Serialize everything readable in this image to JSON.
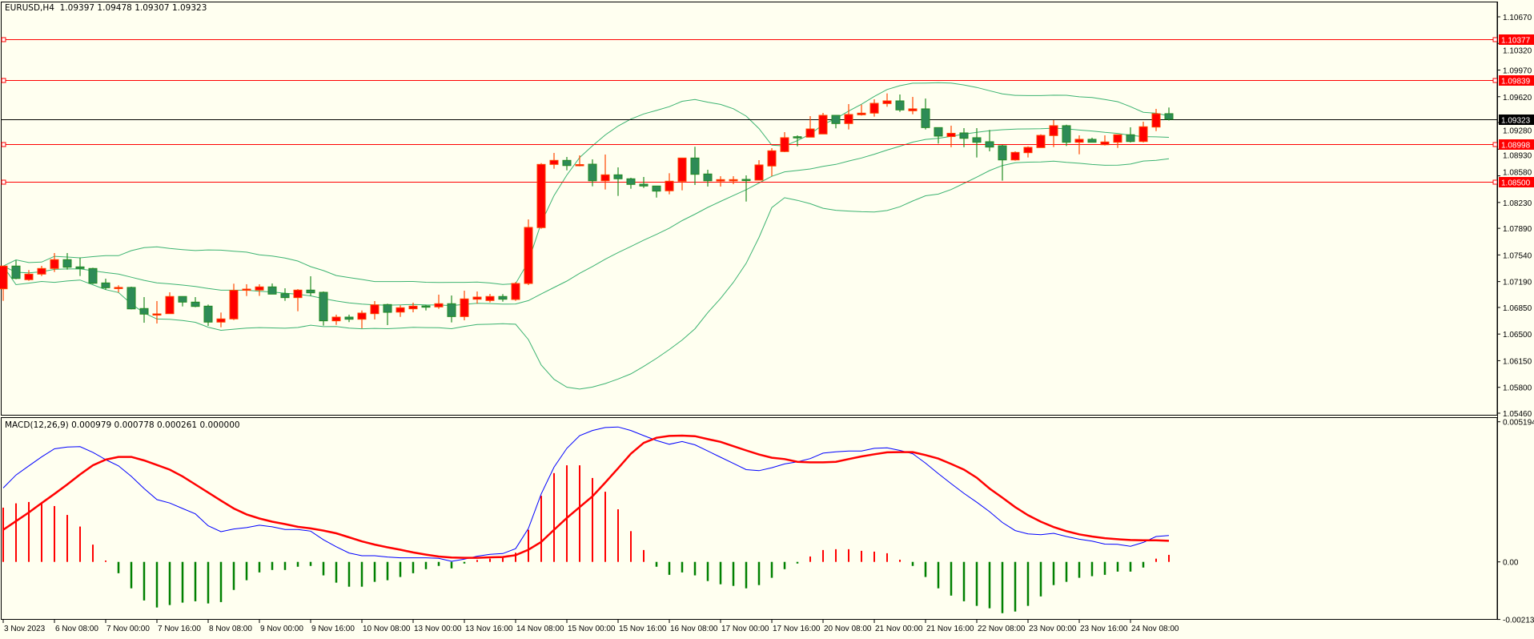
{
  "header": {
    "symbol": "EURUSD,H4",
    "open": "1.09397",
    "high": "1.09478",
    "low": "1.09307",
    "close": "1.09323"
  },
  "macd_header": {
    "name": "MACD(12,26,9)",
    "v1": "0.000979",
    "v2": "0.000778",
    "v3": "0.000261",
    "v4": "0.000000"
  },
  "colors": {
    "background": "#fffff0",
    "bull_fill": "#ff0000",
    "bull_border": "#ff4500",
    "bear_fill": "#2e8b57",
    "bear_border": "#228b22",
    "bands": "#3cb371",
    "hline": "#ff0000",
    "bid_line": "#000000",
    "macd_line": "#0000ff",
    "signal_line": "#ff0000",
    "hist_pos": "#ff0000",
    "hist_neg": "#008000"
  },
  "chart_data": [
    {
      "type": "candlestick",
      "title": "EURUSD,H4",
      "indicator": "Bollinger Bands",
      "ylim": [
        1.0546,
        1.1067
      ],
      "yticks": [
        "1.10670",
        "1.10320",
        "1.09970",
        "1.09620",
        "1.09280",
        "1.08930",
        "1.08580",
        "1.08230",
        "1.07890",
        "1.07540",
        "1.07190",
        "1.06850",
        "1.06500",
        "1.06150",
        "1.05800",
        "1.05460"
      ],
      "hlines": [
        "1.10377",
        "1.09839",
        "1.08998",
        "1.08500"
      ],
      "bid": "1.09323",
      "xticks": [
        "3 Nov 2023",
        "6 Nov 08:00",
        "7 Nov 00:00",
        "7 Nov 16:00",
        "8 Nov 08:00",
        "9 Nov 00:00",
        "9 Nov 16:00",
        "10 Nov 08:00",
        "13 Nov 00:00",
        "13 Nov 16:00",
        "14 Nov 08:00",
        "15 Nov 00:00",
        "15 Nov 16:00",
        "16 Nov 08:00",
        "17 Nov 00:00",
        "17 Nov 16:00",
        "20 Nov 08:00",
        "21 Nov 00:00",
        "21 Nov 16:00",
        "22 Nov 08:00",
        "23 Nov 00:00",
        "23 Nov 16:00",
        "24 Nov 08:00"
      ],
      "ohlc": [
        [
          1.07095,
          1.07397,
          1.06937,
          1.07394
        ],
        [
          1.07394,
          1.0747,
          1.07221,
          1.07231
        ],
        [
          1.07215,
          1.07341,
          1.072,
          1.07288
        ],
        [
          1.07288,
          1.07397,
          1.07263,
          1.07362
        ],
        [
          1.07362,
          1.07565,
          1.07316,
          1.07478
        ],
        [
          1.07478,
          1.07565,
          1.07347,
          1.07379
        ],
        [
          1.07383,
          1.07505,
          1.07263,
          1.07362
        ],
        [
          1.07362,
          1.07372,
          1.07158,
          1.07168
        ],
        [
          1.07172,
          1.07228,
          1.07084,
          1.07109
        ],
        [
          1.0711,
          1.07141,
          1.07049,
          1.07113
        ],
        [
          1.07113,
          1.07123,
          1.06825,
          1.06831
        ],
        [
          1.06836,
          1.06986,
          1.06649,
          1.06762
        ],
        [
          1.06763,
          1.06934,
          1.06639,
          1.06765
        ],
        [
          1.06768,
          1.07049,
          1.06768,
          1.06994
        ],
        [
          1.06994,
          1.06997,
          1.06863,
          1.0692
        ],
        [
          1.0692,
          1.06986,
          1.06853,
          1.06863
        ],
        [
          1.06867,
          1.06888,
          1.06607,
          1.06657
        ],
        [
          1.06657,
          1.06783,
          1.06589,
          1.06699
        ],
        [
          1.06699,
          1.07162,
          1.06684,
          1.07074
        ],
        [
          1.07081,
          1.07155,
          1.07,
          1.07091
        ],
        [
          1.07078,
          1.07155,
          1.07002,
          1.0712
        ],
        [
          1.0712,
          1.07165,
          1.07023,
          1.07025
        ],
        [
          1.07031,
          1.07102,
          1.06937,
          1.06979
        ],
        [
          1.06979,
          1.07091,
          1.068,
          1.07078
        ],
        [
          1.07078,
          1.0726,
          1.07004,
          1.07042
        ],
        [
          1.07049,
          1.0706,
          1.06611,
          1.06674
        ],
        [
          1.06674,
          1.06755,
          1.06621,
          1.06723
        ],
        [
          1.06723,
          1.06755,
          1.06657,
          1.06695
        ],
        [
          1.06695,
          1.0681,
          1.06576,
          1.06776
        ],
        [
          1.06768,
          1.06934,
          1.06692,
          1.06884
        ],
        [
          1.06888,
          1.06899,
          1.06618,
          1.06786
        ],
        [
          1.06789,
          1.06878,
          1.06726,
          1.06846
        ],
        [
          1.06832,
          1.06913,
          1.06786,
          1.06867
        ],
        [
          1.0687,
          1.06884,
          1.0681,
          1.06853
        ],
        [
          1.06857,
          1.07018,
          1.06832,
          1.06899
        ],
        [
          1.06899,
          1.07007,
          1.06653,
          1.0673
        ],
        [
          1.0673,
          1.0707,
          1.06681,
          1.06962
        ],
        [
          1.06958,
          1.0706,
          1.06899,
          1.06986
        ],
        [
          1.06941,
          1.07028,
          1.06916,
          1.06994
        ],
        [
          1.06994,
          1.07025,
          1.06926,
          1.06958
        ],
        [
          1.06955,
          1.07183,
          1.06937,
          1.07165
        ],
        [
          1.07165,
          1.08007,
          1.07144,
          1.07902
        ],
        [
          1.07899,
          1.08747,
          1.07884,
          1.0873
        ],
        [
          1.0873,
          1.08881,
          1.08673,
          1.08783
        ],
        [
          1.08783,
          1.08828,
          1.08652,
          1.08715
        ],
        [
          1.08723,
          1.08849,
          1.08705,
          1.08728
        ],
        [
          1.08733,
          1.08797,
          1.08442,
          1.08515
        ],
        [
          1.08515,
          1.0886,
          1.084,
          1.08593
        ],
        [
          1.08593,
          1.08691,
          1.08316,
          1.08541
        ],
        [
          1.08541,
          1.08555,
          1.0841,
          1.08467
        ],
        [
          1.0847,
          1.08565,
          1.08421,
          1.08446
        ],
        [
          1.08446,
          1.08449,
          1.08294,
          1.08379
        ],
        [
          1.08383,
          1.08614,
          1.08337,
          1.08509
        ],
        [
          1.08509,
          1.08818,
          1.08389,
          1.08814
        ],
        [
          1.08814,
          1.08962,
          1.0846,
          1.086
        ],
        [
          1.08604,
          1.0866,
          1.08439,
          1.08515
        ],
        [
          1.08512,
          1.08575,
          1.08439,
          1.0853
        ],
        [
          1.08529,
          1.08575,
          1.0847,
          1.0853
        ],
        [
          1.08533,
          1.08586,
          1.08242,
          1.08531
        ],
        [
          1.08523,
          1.08786,
          1.08523,
          1.08723
        ],
        [
          1.08709,
          1.08944,
          1.08575,
          1.08909
        ],
        [
          1.08899,
          1.09154,
          1.08891,
          1.09081
        ],
        [
          1.09094,
          1.09112,
          1.08968,
          1.09088
        ],
        [
          1.09088,
          1.09365,
          1.09088,
          1.09196
        ],
        [
          1.0913,
          1.09407,
          1.0913,
          1.09375
        ],
        [
          1.09375,
          1.09375,
          1.09204,
          1.09267
        ],
        [
          1.09267,
          1.09523,
          1.09189,
          1.09386
        ],
        [
          1.09383,
          1.09515,
          1.09372,
          1.09404
        ],
        [
          1.09404,
          1.09586,
          1.09358,
          1.09533
        ],
        [
          1.0953,
          1.09663,
          1.09488,
          1.09565
        ],
        [
          1.09565,
          1.09649,
          1.09421,
          1.09446
        ],
        [
          1.09435,
          1.09617,
          1.09389,
          1.0946
        ],
        [
          1.0946,
          1.09596,
          1.09189,
          1.09214
        ],
        [
          1.09214,
          1.09214,
          1.09004,
          1.09102
        ],
        [
          1.09096,
          1.09239,
          1.08956,
          1.09139
        ],
        [
          1.09144,
          1.09207,
          1.08956,
          1.09073
        ],
        [
          1.09081,
          1.09207,
          1.08821,
          1.09021
        ],
        [
          1.09028,
          1.09183,
          1.08902,
          1.08958
        ],
        [
          1.08975,
          1.08986,
          1.08516,
          1.08789
        ],
        [
          1.08789,
          1.08902,
          1.08779,
          1.08888
        ],
        [
          1.08884,
          1.08968,
          1.08821,
          1.08954
        ],
        [
          1.08951,
          1.09126,
          1.08951,
          1.09112
        ],
        [
          1.09109,
          1.09312,
          1.08958,
          1.09239
        ],
        [
          1.09239,
          1.09252,
          1.08972,
          1.09021
        ],
        [
          1.09021,
          1.09112,
          1.08863,
          1.0906
        ],
        [
          1.0906,
          1.09081,
          1.09021,
          1.09021
        ],
        [
          1.08989,
          1.09112,
          1.08979,
          1.09025
        ],
        [
          1.09021,
          1.0912,
          1.08947,
          1.0912
        ],
        [
          1.0912,
          1.09218,
          1.09018,
          1.09031
        ],
        [
          1.09031,
          1.09291,
          1.09018,
          1.09225
        ],
        [
          1.09221,
          1.0946,
          1.09168,
          1.09396
        ],
        [
          1.09397,
          1.09478,
          1.09307,
          1.09323
        ]
      ]
    },
    {
      "type": "line",
      "title": "MACD(12,26,9)",
      "ylim": [
        -0.002133,
        0.005194
      ],
      "yticks": [
        "0.005194",
        "0.00",
        "-0.002133"
      ],
      "macd": [
        0.00274,
        0.00322,
        0.00356,
        0.00389,
        0.00419,
        0.00426,
        0.00427,
        0.00406,
        0.00379,
        0.00356,
        0.00317,
        0.00272,
        0.00231,
        0.00218,
        0.00198,
        0.00178,
        0.00134,
        0.00112,
        0.00122,
        0.00127,
        0.00136,
        0.0013,
        0.0012,
        0.0012,
        0.00114,
        0.00082,
        0.00056,
        0.00033,
        0.00023,
        0.00023,
        0.00018,
        0.00015,
        0.00015,
        0.00015,
        0.00013,
        2e-05,
        0.0001,
        0.00021,
        0.00028,
        0.00031,
        0.00049,
        0.00124,
        0.00252,
        0.00351,
        0.00421,
        0.00468,
        0.00487,
        0.00498,
        0.005,
        0.00487,
        0.00468,
        0.0045,
        0.00436,
        0.00446,
        0.00434,
        0.00411,
        0.00388,
        0.00365,
        0.00342,
        0.00338,
        0.00349,
        0.00363,
        0.00371,
        0.00383,
        0.00403,
        0.00408,
        0.00411,
        0.00411,
        0.00421,
        0.00423,
        0.00413,
        0.00401,
        0.00366,
        0.00327,
        0.0029,
        0.00254,
        0.00221,
        0.00186,
        0.00146,
        0.00116,
        0.00104,
        0.00101,
        0.00106,
        0.00094,
        0.00084,
        0.00077,
        0.00066,
        0.00065,
        0.00058,
        0.00072,
        0.00094,
        0.00098
      ],
      "signal": [
        0.00119,
        0.00151,
        0.00183,
        0.00218,
        0.00252,
        0.00287,
        0.00324,
        0.00358,
        0.00379,
        0.00389,
        0.00389,
        0.00376,
        0.00359,
        0.00342,
        0.00317,
        0.00287,
        0.00257,
        0.00227,
        0.00198,
        0.00176,
        0.00161,
        0.00149,
        0.0014,
        0.0013,
        0.00124,
        0.00116,
        0.00106,
        0.00091,
        0.00076,
        0.00064,
        0.00054,
        0.00045,
        0.00035,
        0.00027,
        0.0002,
        0.00016,
        0.00015,
        0.00015,
        0.00017,
        0.00018,
        0.00025,
        0.00045,
        0.00074,
        0.00119,
        0.00163,
        0.00203,
        0.00243,
        0.00294,
        0.00347,
        0.00401,
        0.00441,
        0.0046,
        0.00467,
        0.00468,
        0.00466,
        0.00455,
        0.00445,
        0.00429,
        0.00413,
        0.00398,
        0.00386,
        0.00381,
        0.00371,
        0.00369,
        0.00369,
        0.00371,
        0.00381,
        0.00391,
        0.00399,
        0.00406,
        0.00407,
        0.00407,
        0.00396,
        0.00383,
        0.00363,
        0.00342,
        0.00312,
        0.00272,
        0.00238,
        0.00203,
        0.00173,
        0.00149,
        0.00129,
        0.00114,
        0.00102,
        0.00094,
        0.00088,
        0.00084,
        0.00081,
        0.0008,
        0.0008,
        0.00078
      ],
      "histogram": [
        0.00201,
        0.00217,
        0.00222,
        0.00217,
        0.00207,
        0.00174,
        0.00131,
        0.00064,
        5e-05,
        -0.00042,
        -0.00098,
        -0.00143,
        -0.00169,
        -0.0016,
        -0.00151,
        -0.00146,
        -0.00154,
        -0.00149,
        -0.00104,
        -0.00068,
        -0.00039,
        -0.0003,
        -0.0003,
        -0.00018,
        -0.00015,
        -0.0005,
        -0.00077,
        -0.00092,
        -0.00092,
        -0.00074,
        -0.00068,
        -0.00056,
        -0.00042,
        -0.00027,
        -0.00015,
        -0.00024,
        -6e-05,
        7e-05,
        0.00012,
        0.00015,
        0.00034,
        0.00119,
        0.00245,
        0.00329,
        0.00358,
        0.00358,
        0.00311,
        0.0026,
        0.00195,
        0.00114,
        0.00044,
        -0.00018,
        -0.00048,
        -0.00039,
        -0.0005,
        -0.00071,
        -0.00083,
        -0.00089,
        -0.00098,
        -0.00086,
        -0.00059,
        -0.00027,
        -6e-05,
        0.0002,
        0.00044,
        0.00047,
        0.00047,
        0.00041,
        0.00038,
        0.00032,
        8e-05,
        -0.00015,
        -0.00056,
        -0.00098,
        -0.00125,
        -0.00146,
        -0.00163,
        -0.00172,
        -0.0019,
        -0.00184,
        -0.00163,
        -0.00128,
        -0.00086,
        -0.00074,
        -0.00059,
        -0.00053,
        -0.00048,
        -0.00036,
        -0.00036,
        -0.00021,
        0.00012,
        0.00026
      ]
    }
  ]
}
